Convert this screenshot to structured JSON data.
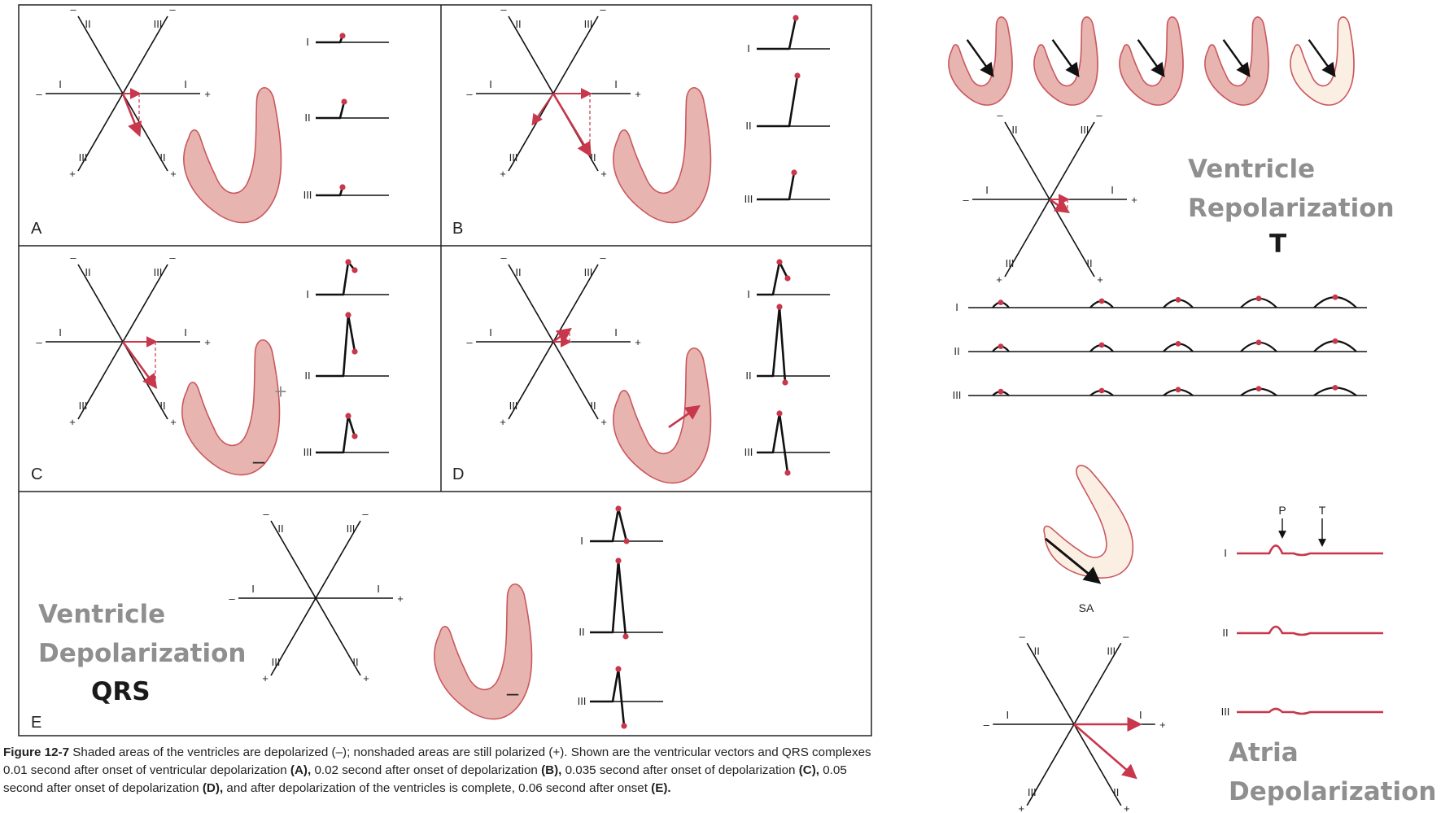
{
  "panels": [
    {
      "letter": "A"
    },
    {
      "letter": "B"
    },
    {
      "letter": "C"
    },
    {
      "letter": "D"
    },
    {
      "letter": "E"
    }
  ],
  "lead_labels": [
    "I",
    "II",
    "III"
  ],
  "polarity": {
    "plus": "+",
    "minus": "–"
  },
  "ventricle_depolarization": {
    "line1": "Ventricle",
    "line2": "Depolarization",
    "wave": "QRS"
  },
  "ventricle_repolarization": {
    "line1": "Ventricle",
    "line2": "Repolarization",
    "wave": "T"
  },
  "atria_depolarization": {
    "line1": "Atria",
    "line2": "Depolarization"
  },
  "atria_marks": {
    "p": "P",
    "t": "T",
    "sa": "SA"
  },
  "caption": {
    "figure": "Figure 12-7",
    "text1": " Shaded areas of the ventricles are depolarized (–); nonshaded areas are still polarized (+). Shown are the ventricular vectors and QRS complexes 0.01 second after onset of ventricular depolarization ",
    "a": "(A),",
    "text2": " 0.02 second after onset of depolarization ",
    "b": "(B),",
    "text3": " 0.035 second after onset of depolarization ",
    "c": "(C),",
    "text4": " 0.05 second after onset of depolarization ",
    "d": "(D),",
    "text5": " and after depolarization of the ventricles is complete, 0.06 second after onset ",
    "e": "(E)."
  },
  "colors": {
    "accent": "#c8374b",
    "heart_fill": "#e8b4b0",
    "heart_light": "#fbeee2",
    "heart_stroke": "#c9585e",
    "gray_text": "#8f8f8f"
  }
}
